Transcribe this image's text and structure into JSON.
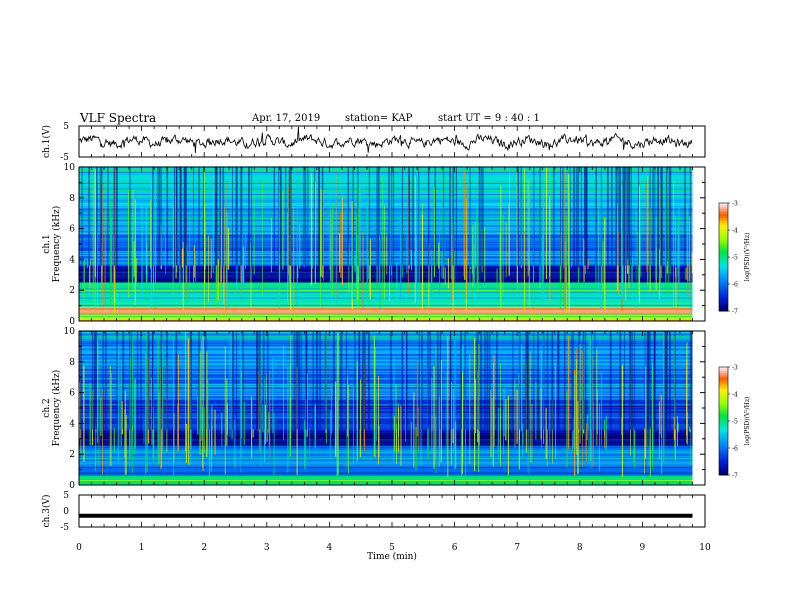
{
  "header": {
    "title": "VLF Spectra",
    "date": "Apr. 17, 2019",
    "station": "station= KAP",
    "start": "start  UT =   9 : 40 : 1"
  },
  "chart_data": [
    {
      "type": "line",
      "panel": "ch1-waveform",
      "ylabel": "ch.1(V)",
      "ylim": [
        -5,
        5
      ],
      "yticks": [
        "5",
        "-5"
      ],
      "xlim": [
        0,
        10
      ],
      "note_series": "noisy waveform oscillating roughly between -2 and 2 V over 0–9.8 min"
    },
    {
      "type": "heatmap",
      "panel": "ch1-spectrogram",
      "ylabel": "ch.1\nFrequency (kHz)",
      "ylim": [
        0,
        10
      ],
      "yticks": [
        "0",
        "2",
        "4",
        "6",
        "8",
        "10"
      ],
      "xlim": [
        0,
        10
      ],
      "data_xrange": [
        0,
        9.8
      ],
      "bands": [
        {
          "from": 0,
          "to": 0.4,
          "level": -4
        },
        {
          "from": 0.4,
          "to": 0.9,
          "level": -3.3
        },
        {
          "from": 0.9,
          "to": 1.6,
          "level": -5.2
        },
        {
          "from": 1.6,
          "to": 2.5,
          "level": -5.0
        },
        {
          "from": 2.5,
          "to": 3.6,
          "level": -6.9
        },
        {
          "from": 3.6,
          "to": 5.6,
          "level": -6.0
        },
        {
          "from": 5.6,
          "to": 7.5,
          "level": -5.7
        },
        {
          "from": 7.5,
          "to": 10,
          "level": -5.4
        }
      ],
      "colorbar": {
        "label": "log(PSD)(V²/Hz)",
        "range": [
          -7,
          -3
        ],
        "ticks": [
          "-3",
          "-4",
          "-5",
          "-6",
          "-7"
        ]
      }
    },
    {
      "type": "heatmap",
      "panel": "ch2-spectrogram",
      "ylabel": "ch.2\nFrequency (kHz)",
      "ylim": [
        0,
        10
      ],
      "yticks": [
        "0",
        "2",
        "4",
        "6",
        "8",
        "10"
      ],
      "xlim": [
        0,
        10
      ],
      "data_xrange": [
        0,
        9.8
      ],
      "bands": [
        {
          "from": 0,
          "to": 0.6,
          "level": -4.8
        },
        {
          "from": 0.6,
          "to": 2.6,
          "level": -6.0
        },
        {
          "from": 2.6,
          "to": 3.6,
          "level": -6.9
        },
        {
          "from": 3.6,
          "to": 5.6,
          "level": -6.3
        },
        {
          "from": 5.6,
          "to": 7.5,
          "level": -6.0
        },
        {
          "from": 7.5,
          "to": 10,
          "level": -5.8
        }
      ],
      "colorbar": {
        "label": "log(PSD)(V²/Hz)",
        "range": [
          -7,
          -3
        ],
        "ticks": [
          "-3",
          "-4",
          "-5",
          "-6",
          "-7"
        ]
      }
    },
    {
      "type": "line",
      "panel": "ch3-waveform",
      "ylabel": "ch.3(V)",
      "ylim": [
        -5,
        5
      ],
      "yticks": [
        "5",
        "0",
        "-5"
      ],
      "xlim": [
        0,
        10
      ],
      "xlabel": "Time (min)",
      "xticks": [
        "0",
        "1",
        "2",
        "3",
        "4",
        "5",
        "6",
        "7",
        "8",
        "9",
        "10"
      ],
      "series": [
        {
          "x": [
            0,
            9.8
          ],
          "y": [
            -1.5,
            -1.5
          ]
        }
      ]
    }
  ]
}
